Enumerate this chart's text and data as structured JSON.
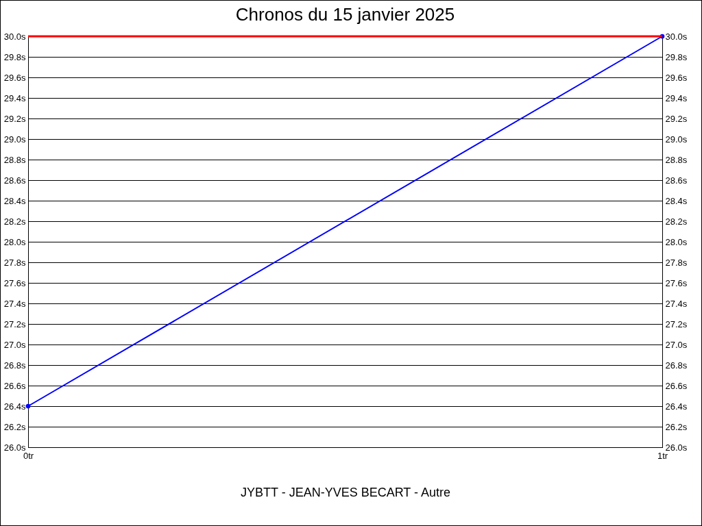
{
  "chart_data": {
    "type": "line",
    "title": "Chronos du 15 janvier 2025",
    "xlabel": "JYBTT - JEAN-YVES BECART - Autre",
    "x": [
      0,
      1
    ],
    "xlim": [
      0,
      1
    ],
    "xticks": [
      {
        "value": 0,
        "label": "0tr"
      },
      {
        "value": 1,
        "label": "1tr"
      }
    ],
    "series": [
      {
        "color": "#0000ff",
        "values": [
          26.4,
          30.0
        ]
      }
    ],
    "ylim": [
      26.0,
      30.0
    ],
    "yticks": [
      {
        "value": 26.0,
        "label": "26.0s"
      },
      {
        "value": 26.2,
        "label": "26.2s"
      },
      {
        "value": 26.4,
        "label": "26.4s"
      },
      {
        "value": 26.6,
        "label": "26.6s"
      },
      {
        "value": 26.8,
        "label": "26.8s"
      },
      {
        "value": 27.0,
        "label": "27.0s"
      },
      {
        "value": 27.2,
        "label": "27.2s"
      },
      {
        "value": 27.4,
        "label": "27.4s"
      },
      {
        "value": 27.6,
        "label": "27.6s"
      },
      {
        "value": 27.8,
        "label": "27.8s"
      },
      {
        "value": 28.0,
        "label": "28.0s"
      },
      {
        "value": 28.2,
        "label": "28.2s"
      },
      {
        "value": 28.4,
        "label": "28.4s"
      },
      {
        "value": 28.6,
        "label": "28.6s"
      },
      {
        "value": 28.8,
        "label": "28.8s"
      },
      {
        "value": 29.0,
        "label": "29.0s"
      },
      {
        "value": 29.2,
        "label": "29.2s"
      },
      {
        "value": 29.4,
        "label": "29.4s"
      },
      {
        "value": 29.6,
        "label": "29.6s"
      },
      {
        "value": 29.8,
        "label": "29.8s"
      },
      {
        "value": 30.0,
        "label": "30.0s"
      }
    ],
    "y2lim": [
      26.0,
      30.0
    ],
    "y2ticks": [
      {
        "value": 26.0,
        "label": "26.0s"
      },
      {
        "value": 26.2,
        "label": "26.2s"
      },
      {
        "value": 26.4,
        "label": "26.4s"
      },
      {
        "value": 26.6,
        "label": "26.6s"
      },
      {
        "value": 26.8,
        "label": "26.8s"
      },
      {
        "value": 27.0,
        "label": "27.0s"
      },
      {
        "value": 27.2,
        "label": "27.2s"
      },
      {
        "value": 27.4,
        "label": "27.4s"
      },
      {
        "value": 27.6,
        "label": "27.6s"
      },
      {
        "value": 27.8,
        "label": "27.8s"
      },
      {
        "value": 28.0,
        "label": "28.0s"
      },
      {
        "value": 28.2,
        "label": "28.2s"
      },
      {
        "value": 28.4,
        "label": "28.4s"
      },
      {
        "value": 28.6,
        "label": "28.6s"
      },
      {
        "value": 28.8,
        "label": "28.8s"
      },
      {
        "value": 29.0,
        "label": "29.0s"
      },
      {
        "value": 29.2,
        "label": "29.2s"
      },
      {
        "value": 29.4,
        "label": "29.4s"
      },
      {
        "value": 29.6,
        "label": "29.6s"
      },
      {
        "value": 29.8,
        "label": "29.8s"
      },
      {
        "value": 30.0,
        "label": "30.0s"
      }
    ],
    "ref_lines": [
      {
        "axis": "y",
        "value": 30.0,
        "color": "#ff0000"
      }
    ],
    "grid": "y",
    "marker": "circle",
    "line_style": "solid"
  }
}
